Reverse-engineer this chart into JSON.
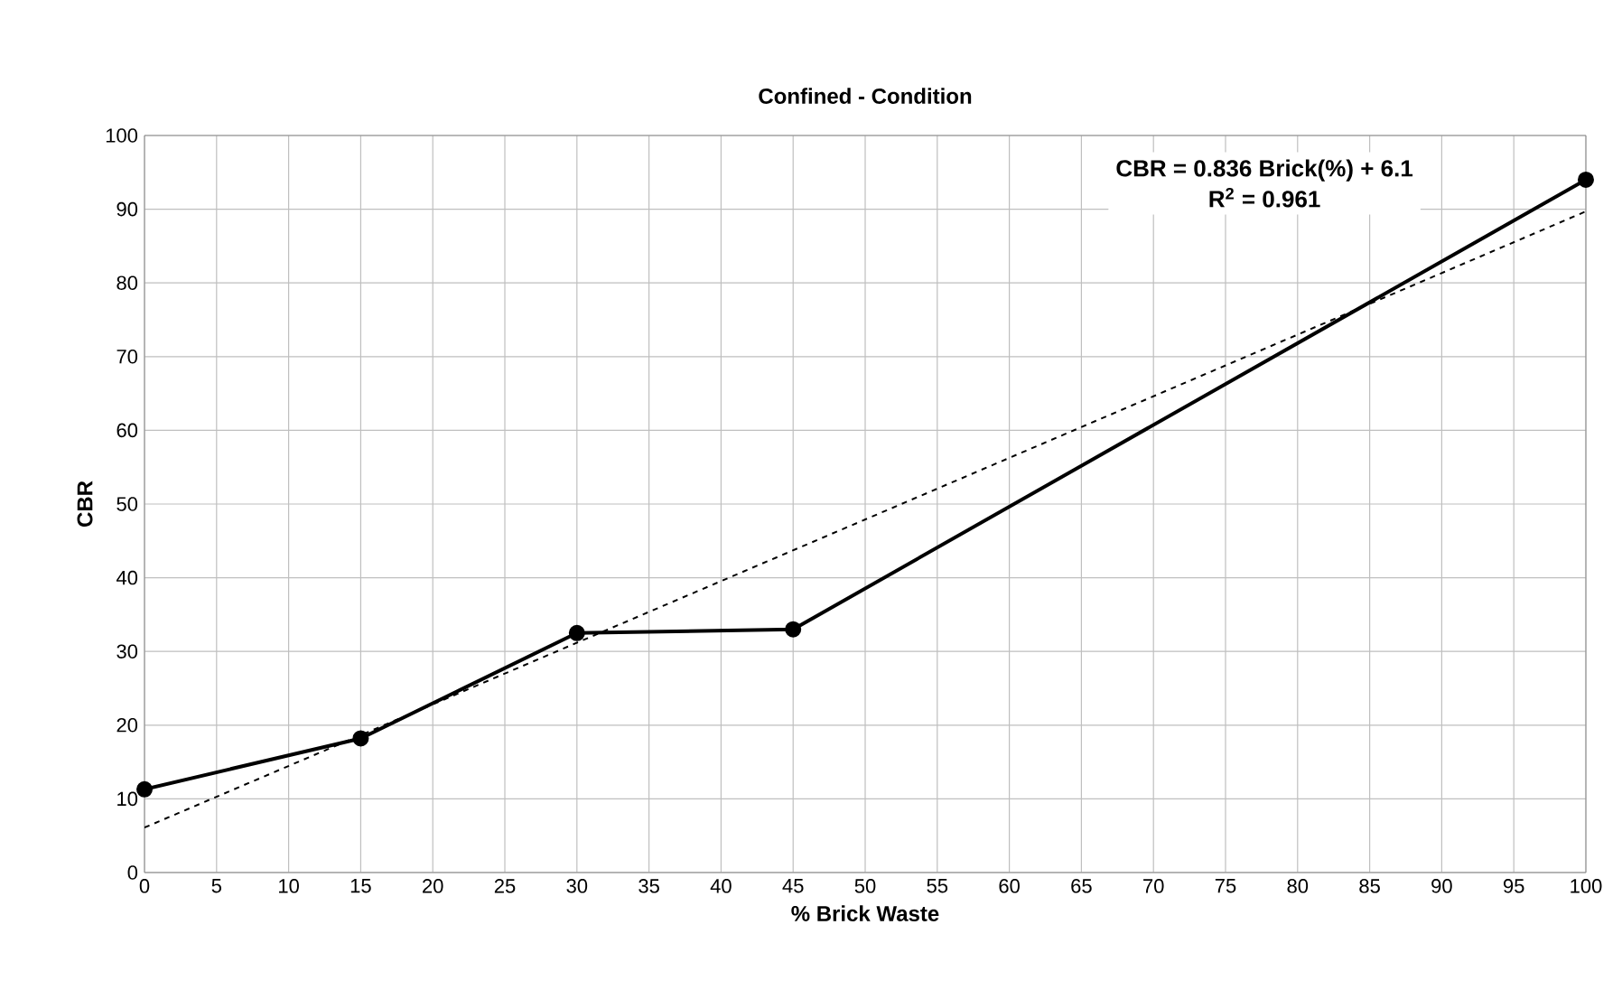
{
  "chart_data": {
    "type": "line",
    "title": "Confined - Condition",
    "xlabel": "% Brick Waste",
    "ylabel": "CBR",
    "series": [
      {
        "type": "line",
        "x": [
          0,
          15,
          30,
          45,
          100
        ],
        "values": [
          11.3,
          18.2,
          32.5,
          33,
          94
        ],
        "color": "#000000",
        "marker": "circle",
        "line_style": "solid"
      },
      {
        "type": "line",
        "x": [
          0,
          100
        ],
        "values": [
          6.1,
          89.7
        ],
        "color": "#000000",
        "marker": "none",
        "line_style": "dashed"
      }
    ],
    "xlim": [
      0,
      100
    ],
    "ylim": [
      0,
      100
    ],
    "xticks": [
      0,
      5,
      10,
      15,
      20,
      25,
      30,
      35,
      40,
      45,
      50,
      55,
      60,
      65,
      70,
      75,
      80,
      85,
      90,
      95,
      100
    ],
    "yticks": [
      0,
      10,
      20,
      30,
      40,
      50,
      60,
      70,
      80,
      90,
      100
    ],
    "grid": true,
    "annotations": [
      "CBR = 0.836 Brick(%) + 6.1",
      "R$^{2}$ = 0.961"
    ]
  }
}
